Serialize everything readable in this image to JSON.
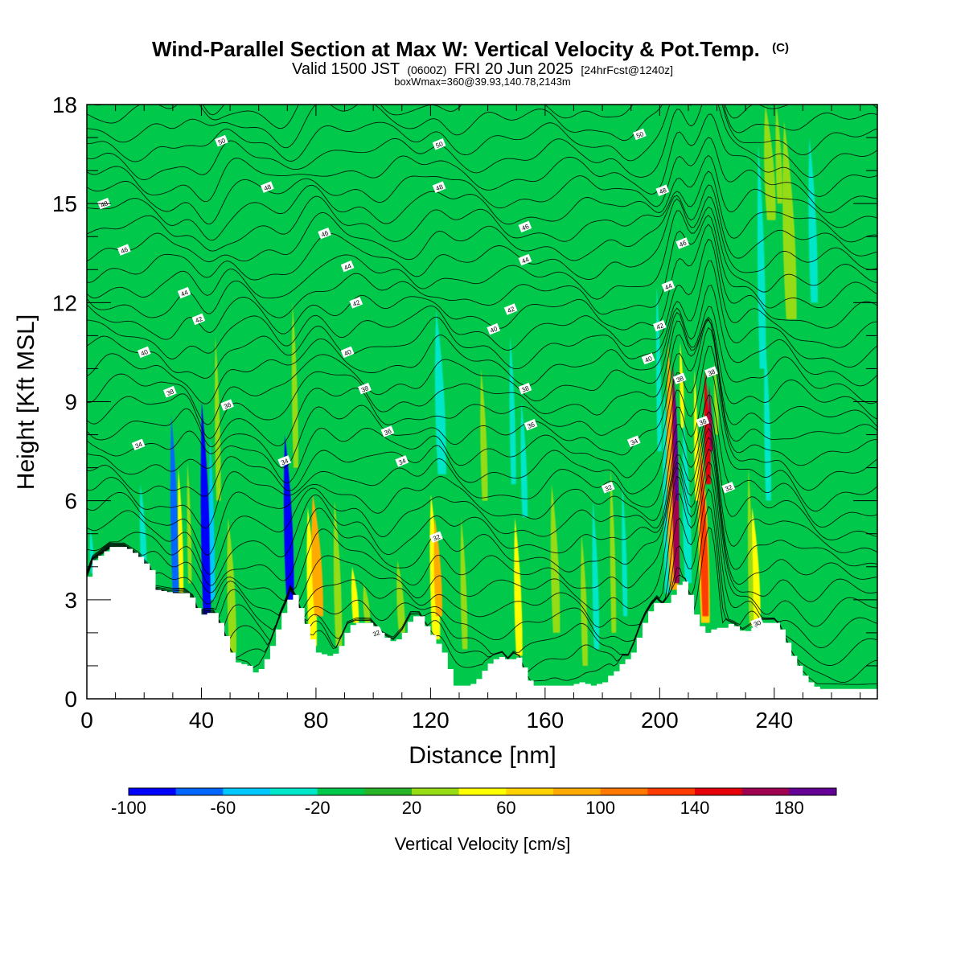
{
  "header": {
    "title": "Wind-Parallel Section at Max W: Vertical Velocity & Pot.Temp.",
    "copyright": "(C)",
    "subtitle_a": "Valid 1500 JST",
    "subtitle_b": "(0600Z)",
    "subtitle_c": "FRI 20 Jun 2025",
    "subtitle_d": "[24hrFcst@1240z]",
    "info": "boxWmax=360@39.93,140.78,2143m"
  },
  "chart_data": {
    "type": "heatmap",
    "xlabel": "Distance [nm]",
    "ylabel": "Height [Kft MSL]",
    "xlim": [
      0,
      276
    ],
    "ylim": [
      0,
      18
    ],
    "x_ticks": [
      0,
      40,
      80,
      120,
      160,
      200,
      240
    ],
    "x_tick_labels": [
      "0",
      "40",
      "80",
      "120",
      "160",
      "200",
      "240"
    ],
    "y_ticks": [
      0,
      3,
      6,
      9,
      12,
      15,
      18
    ],
    "y_tick_labels": [
      "0",
      "3",
      "6",
      "9",
      "12",
      "15",
      "18"
    ],
    "background_value": -10,
    "colorbar": {
      "label": "Vertical Velocity [cm/s]",
      "bounds": [
        -100,
        200
      ],
      "step": 20,
      "tick_values": [
        -100,
        -60,
        -20,
        20,
        60,
        100,
        140,
        180
      ],
      "tick_labels": [
        "-100",
        "-60",
        "-20",
        "20",
        "60",
        "100",
        "140",
        "180"
      ],
      "colors": [
        "#0000ff",
        "#0066ff",
        "#00c8ff",
        "#00e6c8",
        "#00c84b",
        "#28b428",
        "#96dc14",
        "#ffff00",
        "#ffd200",
        "#ffaa00",
        "#ff7800",
        "#ff3c00",
        "#e6000a",
        "#a00050",
        "#640096"
      ]
    },
    "terrain": [
      [
        0,
        3.7
      ],
      [
        2,
        4.2
      ],
      [
        8,
        4.6
      ],
      [
        13,
        4.6
      ],
      [
        18,
        4.3
      ],
      [
        22,
        3.9
      ],
      [
        24,
        3.3
      ],
      [
        30,
        3.2
      ],
      [
        34,
        3.2
      ],
      [
        37,
        3.0
      ],
      [
        39,
        2.5
      ],
      [
        41,
        2.6
      ],
      [
        44,
        2.6
      ],
      [
        46,
        2.3
      ],
      [
        48,
        1.9
      ],
      [
        50,
        1.4
      ],
      [
        52,
        1.1
      ],
      [
        56,
        1.0
      ],
      [
        58,
        0.8
      ],
      [
        60,
        0.9
      ],
      [
        62,
        1.2
      ],
      [
        64,
        1.6
      ],
      [
        66,
        2.1
      ],
      [
        68,
        2.6
      ],
      [
        70,
        3.0
      ],
      [
        71,
        3.3
      ],
      [
        73,
        3.0
      ],
      [
        75,
        2.5
      ],
      [
        78,
        1.8
      ],
      [
        80,
        1.4
      ],
      [
        84,
        1.3
      ],
      [
        87,
        1.4
      ],
      [
        89,
        1.8
      ],
      [
        91,
        2.2
      ],
      [
        94,
        2.3
      ],
      [
        99,
        2.3
      ],
      [
        101,
        2.1
      ],
      [
        103,
        1.9
      ],
      [
        107,
        1.7
      ],
      [
        110,
        2.0
      ],
      [
        113,
        2.5
      ],
      [
        116,
        2.5
      ],
      [
        118,
        2.2
      ],
      [
        121,
        1.8
      ],
      [
        124,
        1.4
      ],
      [
        126,
        0.9
      ],
      [
        128,
        0.4
      ],
      [
        133,
        0.4
      ],
      [
        135,
        0.5
      ],
      [
        137,
        0.7
      ],
      [
        139,
        1.0
      ],
      [
        142,
        1.2
      ],
      [
        145,
        1.3
      ],
      [
        147,
        1.1
      ],
      [
        149,
        1.3
      ],
      [
        151,
        1.2
      ],
      [
        153,
        0.7
      ],
      [
        155,
        0.4
      ],
      [
        164,
        0.4
      ],
      [
        168,
        0.4
      ],
      [
        172,
        0.5
      ],
      [
        176,
        0.4
      ],
      [
        180,
        0.5
      ],
      [
        182,
        0.7
      ],
      [
        185,
        0.9
      ],
      [
        187,
        1.2
      ],
      [
        189,
        1.2
      ],
      [
        191,
        1.6
      ],
      [
        193,
        2.1
      ],
      [
        195,
        2.5
      ],
      [
        197,
        2.8
      ],
      [
        199,
        3.0
      ],
      [
        201,
        2.8
      ],
      [
        203,
        3.0
      ],
      [
        205,
        3.3
      ],
      [
        207,
        3.6
      ],
      [
        209,
        3.5
      ],
      [
        211,
        2.8
      ],
      [
        213,
        2.3
      ],
      [
        215,
        2.1
      ],
      [
        217,
        1.9
      ],
      [
        219,
        2.3
      ],
      [
        221,
        2.0
      ],
      [
        223,
        2.3
      ],
      [
        226,
        2.2
      ],
      [
        229,
        2.0
      ],
      [
        233,
        2.2
      ],
      [
        236,
        2.3
      ],
      [
        240,
        2.3
      ],
      [
        242,
        2.1
      ],
      [
        244,
        1.7
      ],
      [
        246,
        1.3
      ],
      [
        248,
        1.0
      ],
      [
        250,
        0.7
      ],
      [
        252,
        0.5
      ],
      [
        255,
        0.3
      ],
      [
        270,
        0.3
      ],
      [
        276,
        0.3
      ]
    ],
    "velocity_features": [
      {
        "x": 31,
        "top": 8.6,
        "bottom": 3.2,
        "w": 1.8,
        "v": -70
      },
      {
        "x": 33,
        "top": 7.0,
        "bottom": 3.2,
        "w": 1.2,
        "v": 40
      },
      {
        "x": 36,
        "top": 7.2,
        "bottom": 3.5,
        "w": 1.0,
        "v": 20
      },
      {
        "x": 42,
        "top": 9.0,
        "bottom": 2.5,
        "w": 2.2,
        "v": -100
      },
      {
        "x": 44,
        "top": 8.0,
        "bottom": 3.0,
        "w": 1.2,
        "v": -60
      },
      {
        "x": 46,
        "top": 11.0,
        "bottom": 6.0,
        "w": 1.3,
        "v": 30
      },
      {
        "x": 51,
        "top": 5.5,
        "bottom": 1.4,
        "w": 2.0,
        "v": 35
      },
      {
        "x": 71,
        "top": 8.0,
        "bottom": 3.0,
        "w": 2.2,
        "v": -90
      },
      {
        "x": 73,
        "top": 12.0,
        "bottom": 7.0,
        "w": 1.4,
        "v": 35
      },
      {
        "x": 79,
        "top": 5.8,
        "bottom": 1.6,
        "w": 2.2,
        "v": 50
      },
      {
        "x": 81,
        "top": 6.2,
        "bottom": 2.5,
        "w": 2.5,
        "v": 85
      },
      {
        "x": 88,
        "top": 6.0,
        "bottom": 1.6,
        "w": 1.8,
        "v": 30
      },
      {
        "x": 94,
        "top": 4.0,
        "bottom": 2.3,
        "w": 1.6,
        "v": 55
      },
      {
        "x": 98,
        "top": 3.5,
        "bottom": 2.3,
        "w": 1.5,
        "v": 30
      },
      {
        "x": 110,
        "top": 4.2,
        "bottom": 2.0,
        "w": 1.8,
        "v": 35
      },
      {
        "x": 122,
        "top": 6.2,
        "bottom": 1.8,
        "w": 2.2,
        "v": 45
      },
      {
        "x": 123,
        "top": 5.5,
        "bottom": 2.5,
        "w": 1.8,
        "v": 80
      },
      {
        "x": 124,
        "top": 11.8,
        "bottom": 6.8,
        "w": 2.4,
        "v": -30
      },
      {
        "x": 132,
        "top": 5.5,
        "bottom": 1.5,
        "w": 1.5,
        "v": 28
      },
      {
        "x": 139,
        "top": 10.0,
        "bottom": 6.0,
        "w": 1.6,
        "v": 28
      },
      {
        "x": 149,
        "top": 11.0,
        "bottom": 6.5,
        "w": 1.4,
        "v": -30
      },
      {
        "x": 151,
        "top": 5.5,
        "bottom": 1.3,
        "w": 1.8,
        "v": 45
      },
      {
        "x": 153,
        "top": 9.0,
        "bottom": 5.5,
        "w": 1.5,
        "v": -25
      },
      {
        "x": 164,
        "top": 6.5,
        "bottom": 2.0,
        "w": 2.0,
        "v": 25
      },
      {
        "x": 174,
        "top": 5.0,
        "bottom": 1.0,
        "w": 1.5,
        "v": 30
      },
      {
        "x": 178,
        "top": 6.0,
        "bottom": 1.5,
        "w": 1.5,
        "v": -25
      },
      {
        "x": 184,
        "top": 7.0,
        "bottom": 2.0,
        "w": 1.3,
        "v": 25
      },
      {
        "x": 188,
        "top": 6.5,
        "bottom": 2.5,
        "w": 1.2,
        "v": -30
      },
      {
        "x": 200,
        "top": 12.5,
        "bottom": 7.5,
        "w": 1.2,
        "v": -30
      },
      {
        "x": 203,
        "top": 9.5,
        "bottom": 3.2,
        "w": 1.8,
        "v": -30
      },
      {
        "x": 205,
        "top": 10.8,
        "bottom": 3.3,
        "w": 2.5,
        "v": 80
      },
      {
        "x": 206,
        "top": 10.2,
        "bottom": 3.5,
        "w": 1.6,
        "v": 165
      },
      {
        "x": 206,
        "top": 9.5,
        "bottom": 6.0,
        "w": 0.9,
        "v": 185
      },
      {
        "x": 208,
        "top": 10.8,
        "bottom": 8.2,
        "w": 1.0,
        "v": 40
      },
      {
        "x": 210,
        "top": 8.5,
        "bottom": 3.5,
        "w": 2.0,
        "v": -35
      },
      {
        "x": 213,
        "top": 10.0,
        "bottom": 6.0,
        "w": 1.0,
        "v": 40
      },
      {
        "x": 216,
        "top": 8.2,
        "bottom": 2.3,
        "w": 2.5,
        "v": 70
      },
      {
        "x": 216,
        "top": 7.5,
        "bottom": 2.5,
        "w": 1.8,
        "v": 130
      },
      {
        "x": 217,
        "top": 10.0,
        "bottom": 6.5,
        "w": 1.4,
        "v": 150
      },
      {
        "x": 218,
        "top": 9.5,
        "bottom": 7.5,
        "w": 0.9,
        "v": 175
      },
      {
        "x": 220,
        "top": 10.2,
        "bottom": 8.0,
        "w": 1.0,
        "v": 30
      },
      {
        "x": 234,
        "top": 5.8,
        "bottom": 2.2,
        "w": 2.0,
        "v": 55
      },
      {
        "x": 232,
        "top": 7.0,
        "bottom": 2.2,
        "w": 1.2,
        "v": 25
      },
      {
        "x": 236,
        "top": 16.8,
        "bottom": 10.0,
        "w": 1.8,
        "v": -28
      },
      {
        "x": 238,
        "top": 11.0,
        "bottom": 6.0,
        "w": 1.5,
        "v": -25
      },
      {
        "x": 239,
        "top": 18.0,
        "bottom": 14.5,
        "w": 2.5,
        "v": 30
      },
      {
        "x": 242,
        "top": 18.0,
        "bottom": 15.0,
        "w": 1.5,
        "v": 30
      },
      {
        "x": 246,
        "top": 17.5,
        "bottom": 11.5,
        "w": 3.0,
        "v": 28
      },
      {
        "x": 254,
        "top": 17.0,
        "bottom": 12.0,
        "w": 2.0,
        "v": -25
      },
      {
        "x": 20,
        "top": 6.5,
        "bottom": 3.8,
        "w": 1.5,
        "v": -28
      },
      {
        "x": 2,
        "top": 5.2,
        "bottom": 3.8,
        "w": 1.0,
        "v": -25
      }
    ],
    "isentrope_count": 36,
    "contour_labels": [
      {
        "x": 47,
        "y": 16.9,
        "text": "50"
      },
      {
        "x": 123,
        "y": 16.8,
        "text": "50"
      },
      {
        "x": 193,
        "y": 17.1,
        "text": "50"
      },
      {
        "x": 63,
        "y": 15.5,
        "text": "48"
      },
      {
        "x": 123,
        "y": 15.5,
        "text": "48"
      },
      {
        "x": 201,
        "y": 15.4,
        "text": "48"
      },
      {
        "x": 6,
        "y": 15.0,
        "text": "48"
      },
      {
        "x": 13,
        "y": 13.6,
        "text": "46"
      },
      {
        "x": 83,
        "y": 14.1,
        "text": "46"
      },
      {
        "x": 153,
        "y": 14.3,
        "text": "46"
      },
      {
        "x": 208,
        "y": 13.8,
        "text": "46"
      },
      {
        "x": 34,
        "y": 12.3,
        "text": "44"
      },
      {
        "x": 91,
        "y": 13.1,
        "text": "44"
      },
      {
        "x": 153,
        "y": 13.3,
        "text": "44"
      },
      {
        "x": 203,
        "y": 12.5,
        "text": "44"
      },
      {
        "x": 39,
        "y": 11.5,
        "text": "42"
      },
      {
        "x": 94,
        "y": 12.0,
        "text": "42"
      },
      {
        "x": 148,
        "y": 11.8,
        "text": "42"
      },
      {
        "x": 200,
        "y": 11.3,
        "text": "42"
      },
      {
        "x": 20,
        "y": 10.5,
        "text": "40"
      },
      {
        "x": 91,
        "y": 10.5,
        "text": "40"
      },
      {
        "x": 142,
        "y": 11.2,
        "text": "40"
      },
      {
        "x": 196,
        "y": 10.3,
        "text": "40"
      },
      {
        "x": 29,
        "y": 9.3,
        "text": "38"
      },
      {
        "x": 97,
        "y": 9.4,
        "text": "38"
      },
      {
        "x": 153,
        "y": 9.4,
        "text": "38"
      },
      {
        "x": 207,
        "y": 9.7,
        "text": "38"
      },
      {
        "x": 218,
        "y": 9.9,
        "text": "38"
      },
      {
        "x": 49,
        "y": 8.9,
        "text": "36"
      },
      {
        "x": 105,
        "y": 8.1,
        "text": "36"
      },
      {
        "x": 155,
        "y": 8.3,
        "text": "36"
      },
      {
        "x": 215,
        "y": 8.4,
        "text": "36"
      },
      {
        "x": 18,
        "y": 7.7,
        "text": "34"
      },
      {
        "x": 69,
        "y": 7.2,
        "text": "34"
      },
      {
        "x": 110,
        "y": 7.2,
        "text": "34"
      },
      {
        "x": 191,
        "y": 7.8,
        "text": "34"
      },
      {
        "x": 182,
        "y": 6.4,
        "text": "32"
      },
      {
        "x": 224,
        "y": 6.4,
        "text": "32"
      },
      {
        "x": 122,
        "y": 4.9,
        "text": "32"
      },
      {
        "x": 101,
        "y": 2.0,
        "text": "32"
      },
      {
        "x": 234,
        "y": 2.3,
        "text": "30"
      }
    ]
  }
}
